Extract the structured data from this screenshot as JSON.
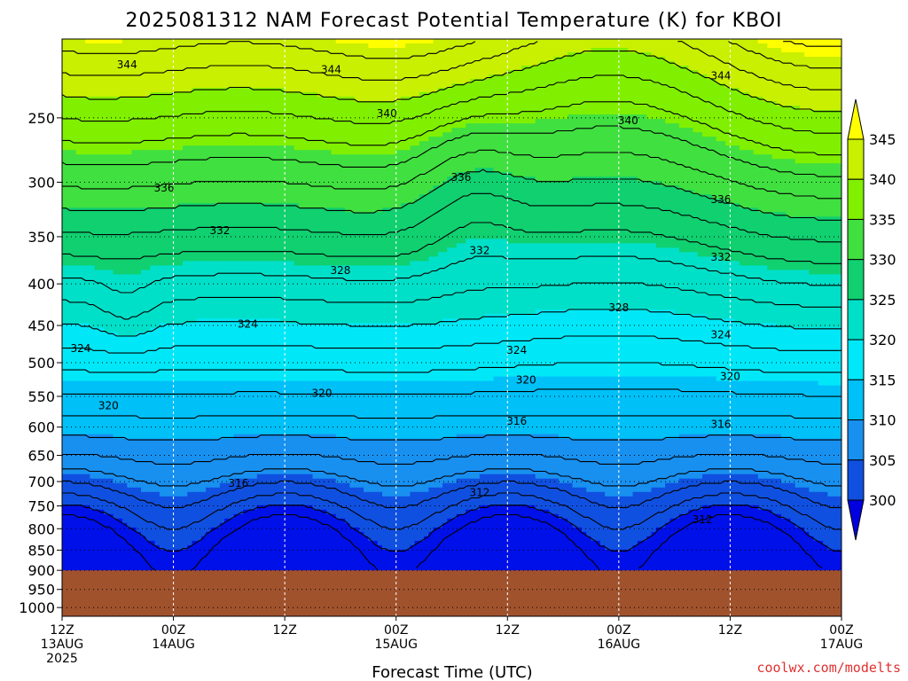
{
  "chart_data": {
    "type": "heatmap",
    "title": "2025081312 NAM Forecast Potential Temperature (K) for KBOI",
    "xlabel": "Forecast Time (UTC)",
    "ylabel": "",
    "credit": "coolwx.com/modelts",
    "y_ticks": [
      "250",
      "300",
      "350",
      "400",
      "450",
      "500",
      "550",
      "600",
      "650",
      "700",
      "750",
      "800",
      "850",
      "900",
      "950",
      "1000"
    ],
    "y_tick_values": [
      250,
      300,
      350,
      400,
      450,
      500,
      550,
      600,
      650,
      700,
      750,
      800,
      850,
      900,
      950,
      1000
    ],
    "ylim": [
      200,
      1025
    ],
    "y_scale": "log",
    "y_inverted": true,
    "x_ticks": [
      {
        "line1": "12Z",
        "line2": "13AUG",
        "line3": "2025",
        "hour": 0
      },
      {
        "line1": "00Z",
        "line2": "14AUG",
        "line3": "",
        "hour": 12
      },
      {
        "line1": "12Z",
        "line2": "",
        "line3": "",
        "hour": 24
      },
      {
        "line1": "00Z",
        "line2": "15AUG",
        "line3": "",
        "hour": 36
      },
      {
        "line1": "12Z",
        "line2": "",
        "line3": "",
        "hour": 48
      },
      {
        "line1": "00Z",
        "line2": "16AUG",
        "line3": "",
        "hour": 60
      },
      {
        "line1": "12Z",
        "line2": "",
        "line3": "",
        "hour": 72
      },
      {
        "line1": "00Z",
        "line2": "17AUG",
        "line3": "",
        "hour": 84
      }
    ],
    "xlim": [
      0,
      84
    ],
    "surface_pressure": 900,
    "colorbar": {
      "labels": [
        "345",
        "340",
        "335",
        "330",
        "325",
        "320",
        "315",
        "310",
        "305",
        "300"
      ],
      "levels": [
        345,
        340,
        335,
        330,
        325,
        320,
        315,
        310,
        305,
        300
      ],
      "colors": [
        "#ffff00",
        "#c8f000",
        "#80f000",
        "#40e040",
        "#10d070",
        "#00e0c8",
        "#00e8f8",
        "#00c0f8",
        "#1890f0",
        "#1050e0",
        "#0010e8"
      ],
      "top_arrow_color": "#ffff00",
      "bottom_arrow_color": "#0000e0"
    },
    "bands": [
      {
        "theta": 345,
        "color": "#ffff00"
      },
      {
        "theta": 340,
        "color": "#c8f000"
      },
      {
        "theta": 335,
        "color": "#80f000"
      },
      {
        "theta": 330,
        "color": "#40e040"
      },
      {
        "theta": 325,
        "color": "#10d070"
      },
      {
        "theta": 320,
        "color": "#00e0c8"
      },
      {
        "theta": 315,
        "color": "#00e8f8"
      },
      {
        "theta": 310,
        "color": "#00c0f8"
      },
      {
        "theta": 305,
        "color": "#1890f0"
      },
      {
        "theta": 300,
        "color": "#1050e0"
      }
    ],
    "contour_labels": [
      {
        "text": "344",
        "hour": 7,
        "p": 215
      },
      {
        "text": "344",
        "hour": 29,
        "p": 218
      },
      {
        "text": "344",
        "hour": 71,
        "p": 222
      },
      {
        "text": "340",
        "hour": 35,
        "p": 247
      },
      {
        "text": "340",
        "hour": 61,
        "p": 252
      },
      {
        "text": "336",
        "hour": 11,
        "p": 305
      },
      {
        "text": "336",
        "hour": 43,
        "p": 296
      },
      {
        "text": "336",
        "hour": 71,
        "p": 315
      },
      {
        "text": "332",
        "hour": 17,
        "p": 344
      },
      {
        "text": "332",
        "hour": 45,
        "p": 364
      },
      {
        "text": "332",
        "hour": 71,
        "p": 371
      },
      {
        "text": "328",
        "hour": 30,
        "p": 385
      },
      {
        "text": "328",
        "hour": 60,
        "p": 428
      },
      {
        "text": "324",
        "hour": 2,
        "p": 480
      },
      {
        "text": "324",
        "hour": 20,
        "p": 448
      },
      {
        "text": "324",
        "hour": 49,
        "p": 483
      },
      {
        "text": "324",
        "hour": 71,
        "p": 462
      },
      {
        "text": "320",
        "hour": 5,
        "p": 565
      },
      {
        "text": "320",
        "hour": 28,
        "p": 545
      },
      {
        "text": "320",
        "hour": 50,
        "p": 525
      },
      {
        "text": "320",
        "hour": 72,
        "p": 520
      },
      {
        "text": "316",
        "hour": 19,
        "p": 703
      },
      {
        "text": "316",
        "hour": 49,
        "p": 590
      },
      {
        "text": "316",
        "hour": 71,
        "p": 595
      },
      {
        "text": "312",
        "hour": 45,
        "p": 722
      },
      {
        "text": "312",
        "hour": 69,
        "p": 780
      }
    ],
    "grid": true,
    "legend": "right"
  }
}
